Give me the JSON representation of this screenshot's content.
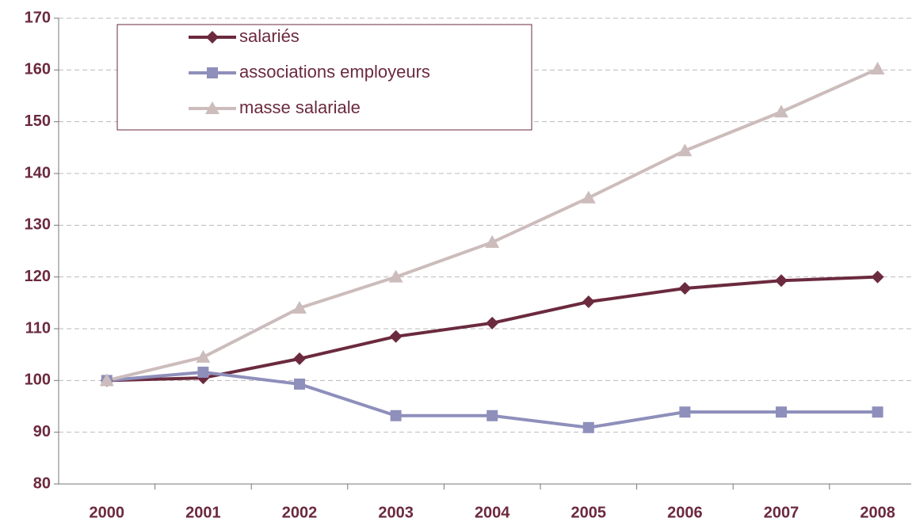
{
  "chart_data": {
    "type": "line",
    "categories": [
      "2000",
      "2001",
      "2002",
      "2003",
      "2004",
      "2005",
      "2006",
      "2007",
      "2008"
    ],
    "series": [
      {
        "name": "salariés",
        "color": "#6b2a3e",
        "marker": "diamond",
        "values": [
          100,
          100.5,
          104.2,
          108.5,
          111.1,
          115.2,
          117.8,
          119.3,
          120
        ]
      },
      {
        "name": "associations employeurs",
        "color": "#8e8fbb",
        "marker": "square",
        "values": [
          100,
          101.6,
          99.3,
          93.2,
          93.2,
          90.9,
          93.9,
          93.9,
          93.9
        ]
      },
      {
        "name": "masse salariale",
        "color": "#cdbcbc",
        "marker": "triangle",
        "values": [
          100,
          104.5,
          114,
          120,
          126.7,
          135.3,
          144.4,
          151.9,
          160.2
        ]
      }
    ],
    "ylim": [
      80,
      170
    ],
    "yticks": [
      80,
      90,
      100,
      110,
      120,
      130,
      140,
      150,
      160,
      170
    ],
    "grid": true,
    "legend": "top-left"
  }
}
